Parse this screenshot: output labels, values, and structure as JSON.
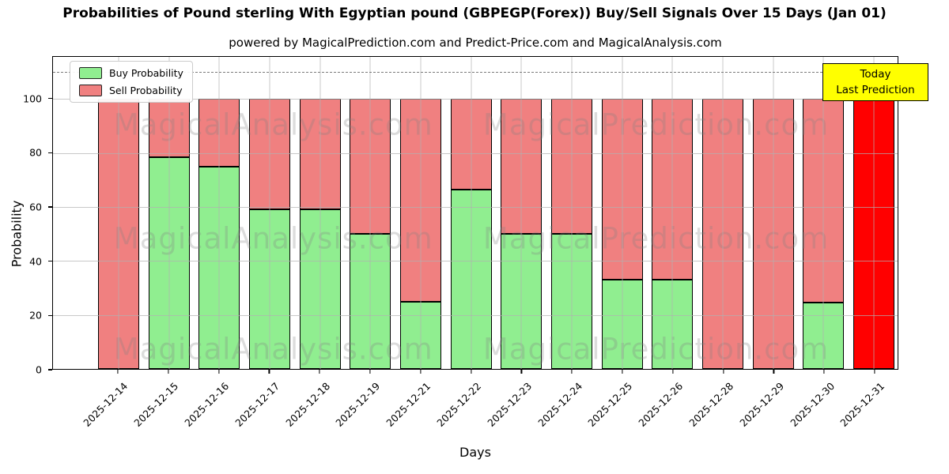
{
  "title": "Probabilities of Pound sterling With Egyptian pound (GBPEGP(Forex)) Buy/Sell Signals Over 15 Days (Jan 01)",
  "subtitle": "powered by MagicalPrediction.com and Predict-Price.com and MagicalAnalysis.com",
  "legend": [
    {
      "label": "Buy Probability",
      "color": "#90ee90"
    },
    {
      "label": "Sell Probability",
      "color": "#f08080"
    }
  ],
  "annotation": {
    "line1": "Today",
    "line2": "Last Prediction",
    "bg_color": "#ffff00"
  },
  "watermarks": {
    "left_text": "MagicalAnalysis.com",
    "right_text": "MagicalPrediction.com"
  },
  "chart_data": {
    "type": "bar",
    "stacked": true,
    "title": "Probabilities of Pound sterling With Egyptian pound (GBPEGP(Forex)) Buy/Sell Signals Over 15 Days (Jan 01)",
    "xlabel": "Days",
    "ylabel": "Probability",
    "categories": [
      "2025-12-14",
      "2025-12-15",
      "2025-12-16",
      "2025-12-17",
      "2025-12-18",
      "2025-12-19",
      "2025-12-21",
      "2025-12-22",
      "2025-12-23",
      "2025-12-24",
      "2025-12-25",
      "2025-12-26",
      "2025-12-28",
      "2025-12-29",
      "2025-12-30",
      "2025-12-31"
    ],
    "series": [
      {
        "name": "Buy Probability",
        "color": "#90ee90",
        "values": [
          0,
          78.5,
          75,
          59,
          59,
          50,
          25,
          66.5,
          50,
          50,
          33,
          33,
          0,
          0,
          24.5,
          0
        ]
      },
      {
        "name": "Sell Probability",
        "color": "#f08080",
        "values": [
          100,
          21.5,
          25,
          41,
          41,
          50,
          75,
          33.5,
          50,
          50,
          67,
          67,
          100,
          100,
          75.5,
          100
        ]
      }
    ],
    "highlight_last": {
      "index": 15,
      "color": "#ff0000",
      "label": "Today Last Prediction"
    },
    "yticks": [
      0,
      20,
      40,
      60,
      80,
      100
    ],
    "ylim": [
      0,
      115.6
    ],
    "dashed_line_y": 110,
    "grid": true,
    "legend_position": "upper left"
  }
}
